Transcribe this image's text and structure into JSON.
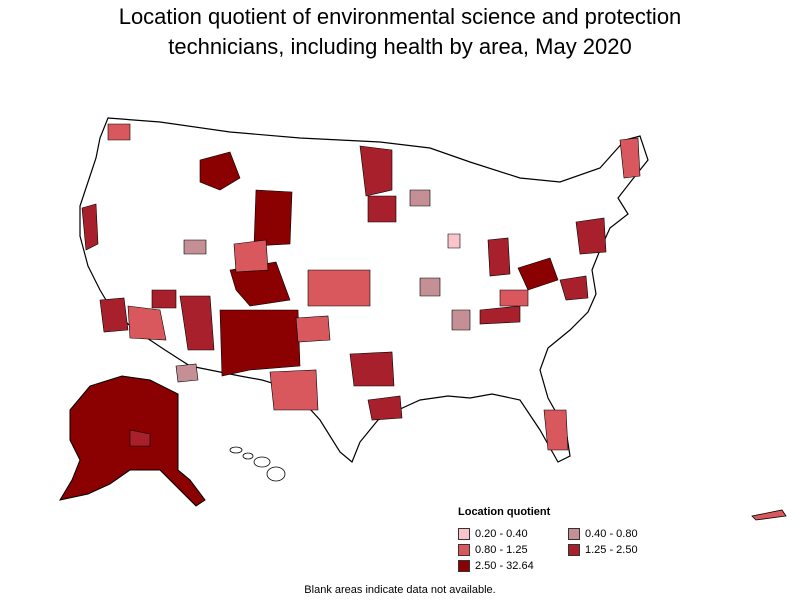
{
  "map": {
    "title_line1": "Location quotient of environmental science and protection",
    "title_line2": "technicians, including health by area, May 2020"
  },
  "legend": {
    "title": "Location quotient",
    "items": [
      {
        "label": "0.20 - 0.40",
        "color": "#f9c4cc"
      },
      {
        "label": "0.40 - 0.80",
        "color": "#c49096"
      },
      {
        "label": "0.80 - 1.25",
        "color": "#d9585e"
      },
      {
        "label": "1.25 - 2.50",
        "color": "#a8202c"
      },
      {
        "label": "2.50 - 32.64",
        "color": "#8b0000"
      }
    ]
  },
  "footnote": "Blank areas indicate data not available."
}
